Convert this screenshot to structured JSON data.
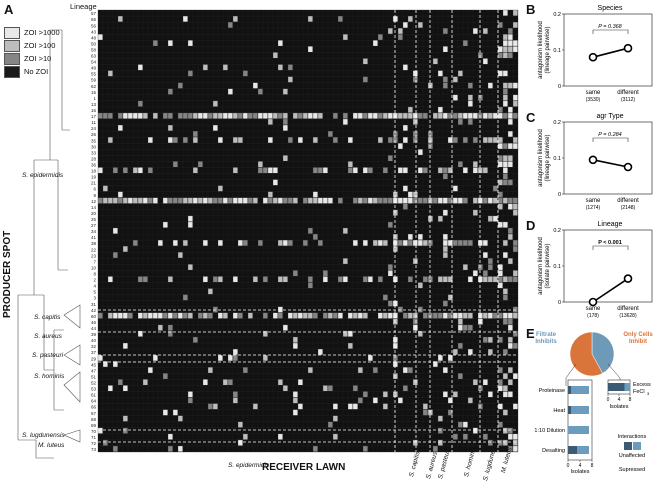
{
  "panels": {
    "A": {
      "label": "A",
      "lineage_header": "Lineage",
      "legend": [
        {
          "label": "ZOI >1000",
          "color": "#e8e8e8"
        },
        {
          "label": "ZOI >100",
          "color": "#bdbdbd"
        },
        {
          "label": "ZOI >10",
          "color": "#858585"
        },
        {
          "label": "No ZOI",
          "color": "#1a1a1a"
        }
      ],
      "y_axis_title": "PRODUCER SPOT",
      "x_axis_title": "RECEIVER LAWN",
      "producer_groups": [
        "S. epidermidis",
        "S. capitis",
        "S. aureus",
        "S. pasteuri",
        "S. hominis",
        "S. lugdunensis",
        "M. luteus"
      ],
      "receiver_groups": [
        "S. epidermidis",
        "S. capitis",
        "S. aureus",
        "S. pasteuri",
        "S. hominis",
        "S. lugdunensis",
        "M. luteus"
      ],
      "lineage_numbers": [
        "57",
        "65",
        "56",
        "43",
        "48",
        "50",
        "58",
        "63",
        "54",
        "49",
        "55",
        "59",
        "62",
        "15",
        "1",
        "13",
        "16",
        "17",
        "11",
        "24",
        "26",
        "35",
        "30",
        "33",
        "28",
        "36",
        "18",
        "19",
        "21",
        "6",
        "9",
        "12",
        "14",
        "20",
        "25",
        "27",
        "34",
        "41",
        "38",
        "22",
        "23",
        "7",
        "10",
        "8",
        "2",
        "4",
        "5",
        "3",
        "31",
        "42",
        "60",
        "46",
        "44",
        "39",
        "40",
        "32",
        "37",
        "29",
        "45",
        "47",
        "51",
        "52",
        "53",
        "61",
        "64",
        "66",
        "67",
        "68",
        "69",
        "70",
        "71",
        "72",
        "73"
      ]
    },
    "B": {
      "label": "B",
      "title": "Species",
      "ylabel_line1": "antagonism likelihood",
      "ylabel_line2": "(lineage pairwise)",
      "p_text": "P = 0.368",
      "categories": [
        "same",
        "different"
      ],
      "counts": [
        "(3530)",
        "(3112)"
      ],
      "yticks": [
        "0.2",
        "0.1",
        "0"
      ]
    },
    "C": {
      "label": "C",
      "title": "agr Type",
      "ylabel_line1": "antagonism likelihood",
      "ylabel_line2": "(lineage pairwise)",
      "p_text": "P = 0.284",
      "categories": [
        "same",
        "different"
      ],
      "counts": [
        "(1274)",
        "(2148)"
      ],
      "yticks": [
        "0.2",
        "0.1",
        "0"
      ]
    },
    "D": {
      "label": "D",
      "title": "Lineage",
      "ylabel_line1": "antagonism likelihood",
      "ylabel_line2": "(isolate pairwise)",
      "p_text": "P < 0.001",
      "categories": [
        "same",
        "different"
      ],
      "counts": [
        "(178)",
        "(13628)"
      ],
      "yticks": [
        "0.2",
        "0.1",
        "0"
      ]
    },
    "E": {
      "label": "E",
      "pie_left": "Filtrate Inhibits",
      "pie_right": "Only Cells Inhibit",
      "bars_left": [
        "Proteinase",
        "Heat",
        "1:10 Dilution",
        "Desalting"
      ],
      "bar_right": "Excess FeCl",
      "bar_right_sub": "3",
      "xlabel": "Isolates",
      "xticks": [
        "0",
        "4",
        "8"
      ],
      "legend_title": "Interactions",
      "legend_items": [
        "Unaffected",
        "Supressed"
      ]
    }
  },
  "chart_data": [
    {
      "type": "line",
      "title": "Species",
      "categories": [
        "same",
        "different"
      ],
      "series": [
        {
          "values": [
            0.08,
            0.105
          ]
        }
      ],
      "ylim": [
        0,
        0.2
      ],
      "ylabel": "antagonism likelihood (lineage pairwise)"
    },
    {
      "type": "line",
      "title": "agr Type",
      "categories": [
        "same",
        "different"
      ],
      "series": [
        {
          "values": [
            0.095,
            0.075
          ]
        }
      ],
      "ylim": [
        0,
        0.2
      ],
      "ylabel": "antagonism likelihood (lineage pairwise)"
    },
    {
      "type": "line",
      "title": "Lineage",
      "categories": [
        "same",
        "different"
      ],
      "series": [
        {
          "values": [
            0.0,
            0.065
          ]
        }
      ],
      "ylim": [
        0,
        0.2
      ],
      "ylabel": "antagonism likelihood (isolate pairwise)"
    },
    {
      "type": "pie",
      "categories": [
        "Filtrate Inhibits",
        "Only Cells Inhibit"
      ],
      "values": [
        0.42,
        0.58
      ]
    },
    {
      "type": "bar",
      "categories": [
        "Proteinase",
        "Heat",
        "1:10 Dilution",
        "Desalting"
      ],
      "series": [
        {
          "name": "Unaffected",
          "values": [
            1,
            1,
            0,
            3
          ]
        },
        {
          "name": "Supressed",
          "values": [
            6,
            6,
            7,
            4
          ]
        }
      ],
      "xlabel": "Isolates",
      "xlim": [
        0,
        8
      ]
    },
    {
      "type": "bar",
      "categories": [
        "Excess FeCl3"
      ],
      "series": [
        {
          "name": "Unaffected",
          "values": [
            6
          ]
        },
        {
          "name": "Supressed",
          "values": [
            2
          ]
        }
      ],
      "xlabel": "Isolates",
      "xlim": [
        0,
        8
      ]
    }
  ],
  "colors": {
    "grid_bg": "#111111",
    "unaffected": "#3d5a73",
    "supressed": "#6c9cbd",
    "filtrate": "#6e9ab8",
    "only_cells": "#d9743a",
    "dashed": "#ffffff"
  }
}
